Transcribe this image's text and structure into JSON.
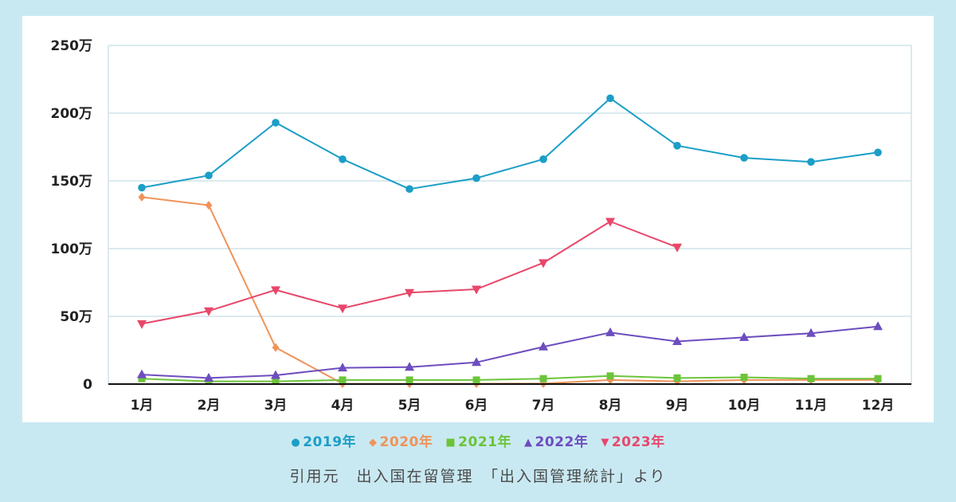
{
  "chart_data": {
    "type": "line",
    "categories": [
      "1月",
      "2月",
      "3月",
      "4月",
      "5月",
      "6月",
      "7月",
      "8月",
      "9月",
      "10月",
      "11月",
      "12月"
    ],
    "y_ticks": [
      {
        "value": 0,
        "label": "0"
      },
      {
        "value": 500000,
        "label": "50万"
      },
      {
        "value": 1000000,
        "label": "100万"
      },
      {
        "value": 1500000,
        "label": "150万"
      },
      {
        "value": 2000000,
        "label": "200万"
      },
      {
        "value": 2500000,
        "label": "250万"
      }
    ],
    "ylim": [
      0,
      2500000
    ],
    "grid": true,
    "legend_position": "bottom",
    "series": [
      {
        "name": "2019年",
        "color": "#1b9ec7",
        "marker": "circle",
        "values": [
          1450000,
          1540000,
          1930000,
          1660000,
          1440000,
          1520000,
          1660000,
          2110000,
          1760000,
          1670000,
          1640000,
          1710000
        ]
      },
      {
        "name": "2020年",
        "color": "#f0935a",
        "marker": "diamond",
        "values": [
          1380000,
          1320000,
          270000,
          3000,
          2000,
          3000,
          4000,
          30000,
          20000,
          30000,
          30000,
          30000
        ]
      },
      {
        "name": "2021年",
        "color": "#6cc43a",
        "marker": "square",
        "values": [
          40000,
          20000,
          20000,
          30000,
          30000,
          30000,
          40000,
          60000,
          45000,
          50000,
          40000,
          40000
        ]
      },
      {
        "name": "2022年",
        "color": "#6e4dbf",
        "marker": "triangle-up",
        "values": [
          70000,
          45000,
          65000,
          120000,
          125000,
          160000,
          275000,
          380000,
          315000,
          345000,
          375000,
          425000
        ]
      },
      {
        "name": "2023年",
        "color": "#e8476a",
        "marker": "triangle-down",
        "values": [
          445000,
          540000,
          695000,
          560000,
          675000,
          700000,
          895000,
          1200000,
          1010000,
          null,
          null,
          null
        ]
      }
    ]
  },
  "source_text": "引用元　出入国在留管理　「出入国管理統計」より"
}
